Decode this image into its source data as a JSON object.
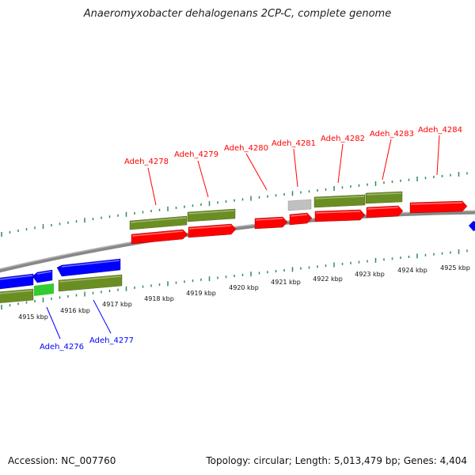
{
  "title": "Anaeromyxobacter dehalogenans 2CP-C, complete genome",
  "footer": {
    "accession": "Accession: NC_007760",
    "summary": "Topology: circular; Length: 5,013,479 bp; Genes: 4,404"
  },
  "colors": {
    "forward_gene": "#ff0000",
    "reverse_gene": "#0000ff",
    "forward_cds": "#6b8e23",
    "reverse_cds": "#6b8e23",
    "other_feature": "#c0c0c0",
    "highlight": "#33cc33",
    "tick": "#2e8b57",
    "backbone": "#888888"
  },
  "kbp_ticks": [
    "4915 kbp",
    "4916 kbp",
    "4917 kbp",
    "4918 kbp",
    "4919 kbp",
    "4920 kbp",
    "4921 kbp",
    "4922 kbp",
    "4923 kbp",
    "4924 kbp",
    "4925 kbp"
  ],
  "forward_genes": [
    {
      "label": "Adeh_4278"
    },
    {
      "label": "Adeh_4279"
    },
    {
      "label": "Adeh_4280"
    },
    {
      "label": "Adeh_4281"
    },
    {
      "label": "Adeh_4282"
    },
    {
      "label": "Adeh_4283"
    },
    {
      "label": "Adeh_4284"
    }
  ],
  "reverse_genes": [
    {
      "label": "Adeh_4276"
    },
    {
      "label": "Adeh_4277"
    }
  ]
}
